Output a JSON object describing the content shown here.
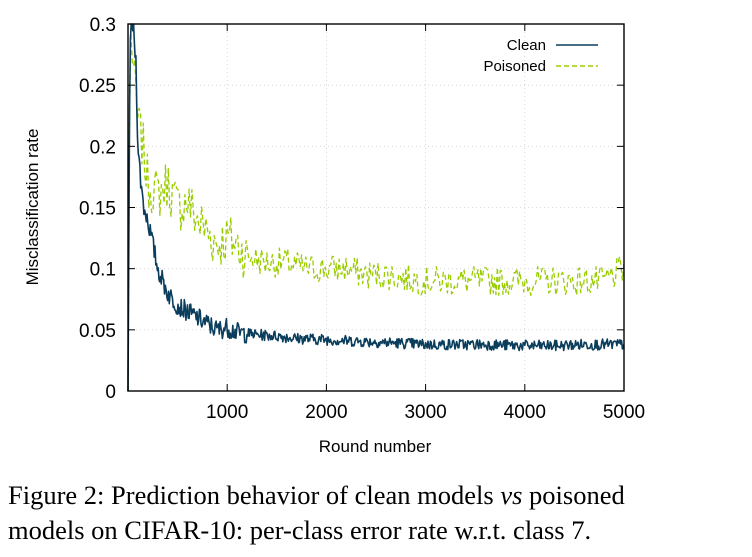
{
  "chart_data": {
    "type": "line",
    "xlabel": "Round number",
    "ylabel": "Misclassification rate",
    "xlim": [
      0,
      5000
    ],
    "ylim": [
      0,
      0.3
    ],
    "x_ticks": [
      "1000",
      "2000",
      "3000",
      "4000",
      "5000"
    ],
    "y_ticks": [
      "0",
      "0.05",
      "0.1",
      "0.15",
      "0.2",
      "0.25",
      "0.3"
    ],
    "grid": true,
    "legend_position": "top-right",
    "series": [
      {
        "name": "Clean",
        "color": "#0b3e5c",
        "style": "solid",
        "points": [
          [
            0,
            0
          ],
          [
            20,
            0.29
          ],
          [
            50,
            0.3
          ],
          [
            80,
            0.27
          ],
          [
            100,
            0.2
          ],
          [
            130,
            0.17
          ],
          [
            160,
            0.15
          ],
          [
            200,
            0.14
          ],
          [
            250,
            0.12
          ],
          [
            300,
            0.1
          ],
          [
            350,
            0.09
          ],
          [
            400,
            0.08
          ],
          [
            450,
            0.075
          ],
          [
            500,
            0.07
          ],
          [
            600,
            0.065
          ],
          [
            700,
            0.06
          ],
          [
            800,
            0.055
          ],
          [
            900,
            0.05
          ],
          [
            1000,
            0.052
          ],
          [
            1100,
            0.048
          ],
          [
            1200,
            0.047
          ],
          [
            1300,
            0.046
          ],
          [
            1500,
            0.045
          ],
          [
            1700,
            0.043
          ],
          [
            2000,
            0.042
          ],
          [
            2200,
            0.041
          ],
          [
            2500,
            0.04
          ],
          [
            2800,
            0.039
          ],
          [
            3000,
            0.038
          ],
          [
            3300,
            0.038
          ],
          [
            3600,
            0.038
          ],
          [
            4000,
            0.037
          ],
          [
            4300,
            0.037
          ],
          [
            4600,
            0.038
          ],
          [
            5000,
            0.038
          ]
        ]
      },
      {
        "name": "Poisoned",
        "color": "#9acd00",
        "style": "dashed",
        "points": [
          [
            0,
            0
          ],
          [
            20,
            0.3
          ],
          [
            60,
            0.26
          ],
          [
            100,
            0.22
          ],
          [
            150,
            0.2
          ],
          [
            200,
            0.17
          ],
          [
            300,
            0.16
          ],
          [
            400,
            0.17
          ],
          [
            500,
            0.15
          ],
          [
            600,
            0.155
          ],
          [
            700,
            0.14
          ],
          [
            800,
            0.13
          ],
          [
            900,
            0.12
          ],
          [
            1000,
            0.125
          ],
          [
            1100,
            0.12
          ],
          [
            1200,
            0.11
          ],
          [
            1400,
            0.105
          ],
          [
            1600,
            0.105
          ],
          [
            1800,
            0.1
          ],
          [
            2000,
            0.1
          ],
          [
            2200,
            0.1
          ],
          [
            2400,
            0.095
          ],
          [
            2600,
            0.095
          ],
          [
            2800,
            0.092
          ],
          [
            3000,
            0.09
          ],
          [
            3200,
            0.09
          ],
          [
            3500,
            0.09
          ],
          [
            3800,
            0.09
          ],
          [
            4000,
            0.09
          ],
          [
            4200,
            0.09
          ],
          [
            4500,
            0.09
          ],
          [
            4800,
            0.09
          ],
          [
            5000,
            0.1
          ]
        ]
      }
    ]
  },
  "caption": {
    "prefix": "Figure 2: Prediction behavior of clean models ",
    "emph": "vs",
    "suffix": " poisoned",
    "line2": "models on CIFAR-10: per-class error rate w.r.t. class 7."
  }
}
